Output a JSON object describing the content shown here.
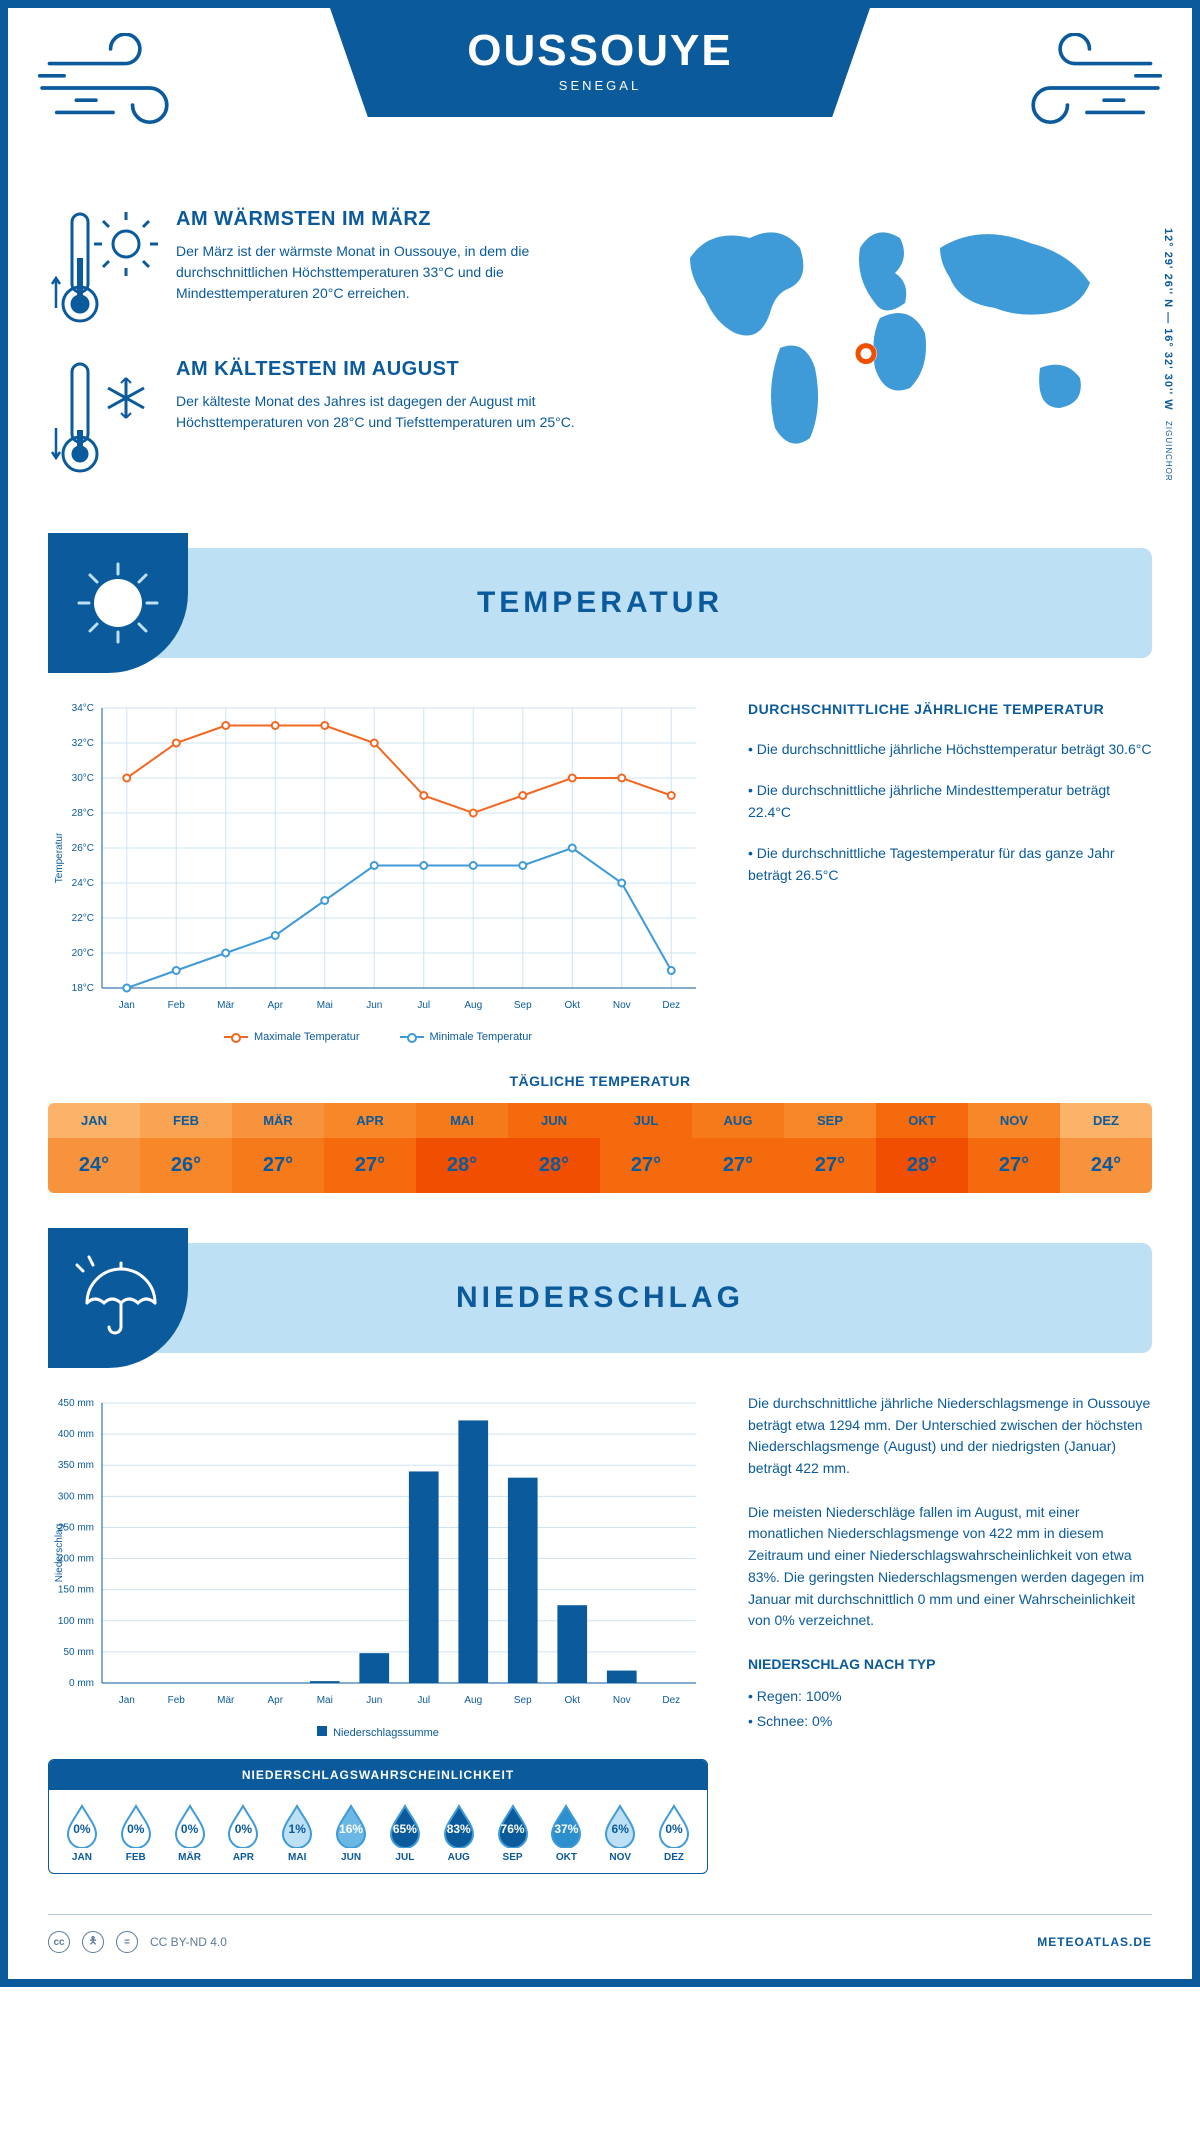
{
  "header": {
    "city": "OUSSOUYE",
    "country": "SENEGAL",
    "coords": "12° 29' 26'' N — 16° 32' 30'' W",
    "region": "ZIGUINCHOR"
  },
  "intro": {
    "warm": {
      "title": "AM WÄRMSTEN IM MÄRZ",
      "text": "Der März ist der wärmste Monat in Oussouye, in dem die durchschnittlichen Höchsttemperaturen 33°C und die Mindesttemperaturen 20°C erreichen."
    },
    "cold": {
      "title": "AM KÄLTESTEN IM AUGUST",
      "text": "Der kälteste Monat des Jahres ist dagegen der August mit Höchsttemperaturen von 28°C und Tiefsttemperaturen um 25°C."
    }
  },
  "map": {
    "marker": {
      "cx_pct": 45,
      "cy_pct": 56
    }
  },
  "sections": {
    "temp_title": "TEMPERATUR",
    "precip_title": "NIEDERSCHLAG"
  },
  "temp_chart": {
    "type": "line",
    "months": [
      "Jan",
      "Feb",
      "Mär",
      "Apr",
      "Mai",
      "Jun",
      "Jul",
      "Aug",
      "Sep",
      "Okt",
      "Nov",
      "Dez"
    ],
    "ylabel": "Temperatur",
    "ylim": [
      18,
      34
    ],
    "ytick_step": 2,
    "series": {
      "max": {
        "label": "Maximale Temperatur",
        "color": "#f26722",
        "values": [
          30,
          32,
          33,
          33,
          33,
          32,
          29,
          28,
          29,
          30,
          30,
          29
        ]
      },
      "min": {
        "label": "Minimale Temperatur",
        "color": "#3f9ad8",
        "values": [
          18,
          19,
          20,
          21,
          23,
          25,
          25,
          25,
          25,
          26,
          24,
          19
        ]
      }
    },
    "grid_color": "#cfe3f2",
    "axis_color": "#0a5a9c",
    "marker_radius": 3.5,
    "line_width": 2,
    "font_size_tick": 10
  },
  "temp_notes": {
    "heading": "DURCHSCHNITTLICHE JÄHRLICHE TEMPERATUR",
    "p1": "• Die durchschnittliche jährliche Höchsttemperatur beträgt 30.6°C",
    "p2": "• Die durchschnittliche jährliche Mindesttemperatur beträgt 22.4°C",
    "p3": "• Die durchschnittliche Tagestemperatur für das ganze Jahr beträgt 26.5°C"
  },
  "daily": {
    "title": "TÄGLICHE TEMPERATUR",
    "months": [
      "JAN",
      "FEB",
      "MÄR",
      "APR",
      "MAI",
      "JUN",
      "JUL",
      "AUG",
      "SEP",
      "OKT",
      "NOV",
      "DEZ"
    ],
    "values": [
      "24°",
      "26°",
      "27°",
      "27°",
      "28°",
      "28°",
      "27°",
      "27°",
      "27°",
      "28°",
      "27°",
      "24°"
    ],
    "head_colors": [
      "#fbb36a",
      "#faa352",
      "#f8933d",
      "#f78729",
      "#f6791a",
      "#f56a0c",
      "#f56a0c",
      "#f6791a",
      "#f78729",
      "#f56a0c",
      "#f78729",
      "#fbb36a"
    ],
    "row_colors": [
      "#f8933d",
      "#f78729",
      "#f6791a",
      "#f56a0c",
      "#f04e00",
      "#f04e00",
      "#f56a0c",
      "#f56a0c",
      "#f56a0c",
      "#f04e00",
      "#f56a0c",
      "#f8933d"
    ]
  },
  "precip_chart": {
    "type": "bar",
    "months": [
      "Jan",
      "Feb",
      "Mär",
      "Apr",
      "Mai",
      "Jun",
      "Jul",
      "Aug",
      "Sep",
      "Okt",
      "Nov",
      "Dez"
    ],
    "values": [
      0,
      0,
      0,
      0,
      3,
      48,
      340,
      422,
      330,
      125,
      20,
      0
    ],
    "ylabel": "Niederschlag",
    "ylim": [
      0,
      450
    ],
    "ytick_step": 50,
    "bar_color": "#0a5a9c",
    "grid_color": "#cfe3f2",
    "axis_color": "#0a5a9c",
    "bar_width_ratio": 0.6,
    "legend": "Niederschlagssumme",
    "font_size_tick": 10
  },
  "precip_text": {
    "p1": "Die durchschnittliche jährliche Niederschlagsmenge in Oussouye beträgt etwa 1294 mm. Der Unterschied zwischen der höchsten Niederschlagsmenge (August) und der niedrigsten (Januar) beträgt 422 mm.",
    "p2": "Die meisten Niederschläge fallen im August, mit einer monatlichen Niederschlagsmenge von 422 mm in diesem Zeitraum und einer Niederschlagswahrscheinlichkeit von etwa 83%. Die geringsten Niederschlagsmengen werden dagegen im Januar mit durchschnittlich 0 mm und einer Wahrscheinlichkeit von 0% verzeichnet.",
    "byType": {
      "heading": "NIEDERSCHLAG NACH TYP",
      "rain": "• Regen: 100%",
      "snow": "• Schnee: 0%"
    }
  },
  "prob": {
    "title": "NIEDERSCHLAGSWAHRSCHEINLICHKEIT",
    "months": [
      "JAN",
      "FEB",
      "MÄR",
      "APR",
      "MAI",
      "JUN",
      "JUL",
      "AUG",
      "SEP",
      "OKT",
      "NOV",
      "DEZ"
    ],
    "values": [
      0,
      0,
      0,
      0,
      1,
      16,
      65,
      83,
      76,
      37,
      6,
      0
    ],
    "outline_color": "#3f9ad8",
    "fill_scale": [
      {
        "min": 0,
        "max": 0,
        "fill": "none",
        "text": "#0a5a9c"
      },
      {
        "min": 1,
        "max": 9,
        "fill": "#bde0f5",
        "text": "#0a5a9c"
      },
      {
        "min": 10,
        "max": 29,
        "fill": "#6cb8e4",
        "text": "#ffffff"
      },
      {
        "min": 30,
        "max": 49,
        "fill": "#2e8fcf",
        "text": "#ffffff"
      },
      {
        "min": 50,
        "max": 100,
        "fill": "#0a5a9c",
        "text": "#ffffff"
      }
    ]
  },
  "footer": {
    "license": "CC BY-ND 4.0",
    "brand": "METEOATLAS.DE"
  }
}
